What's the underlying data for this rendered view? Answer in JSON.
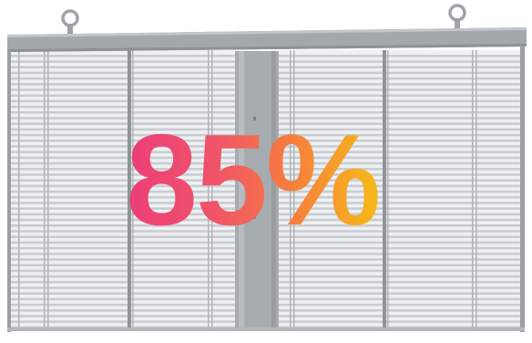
{
  "display": {
    "transparency_label": "85%"
  },
  "panel": {
    "frame_color": "#9a9fa4",
    "top_bar_color": "#a3a8ad",
    "slat_color": "#c9cdd1",
    "spine_color": "#a7acb1",
    "hanging_rings": 2
  },
  "colors": {
    "gradient_start": "#ec3f78",
    "gradient_mid": "#f7803c",
    "gradient_end": "#f7c418"
  }
}
